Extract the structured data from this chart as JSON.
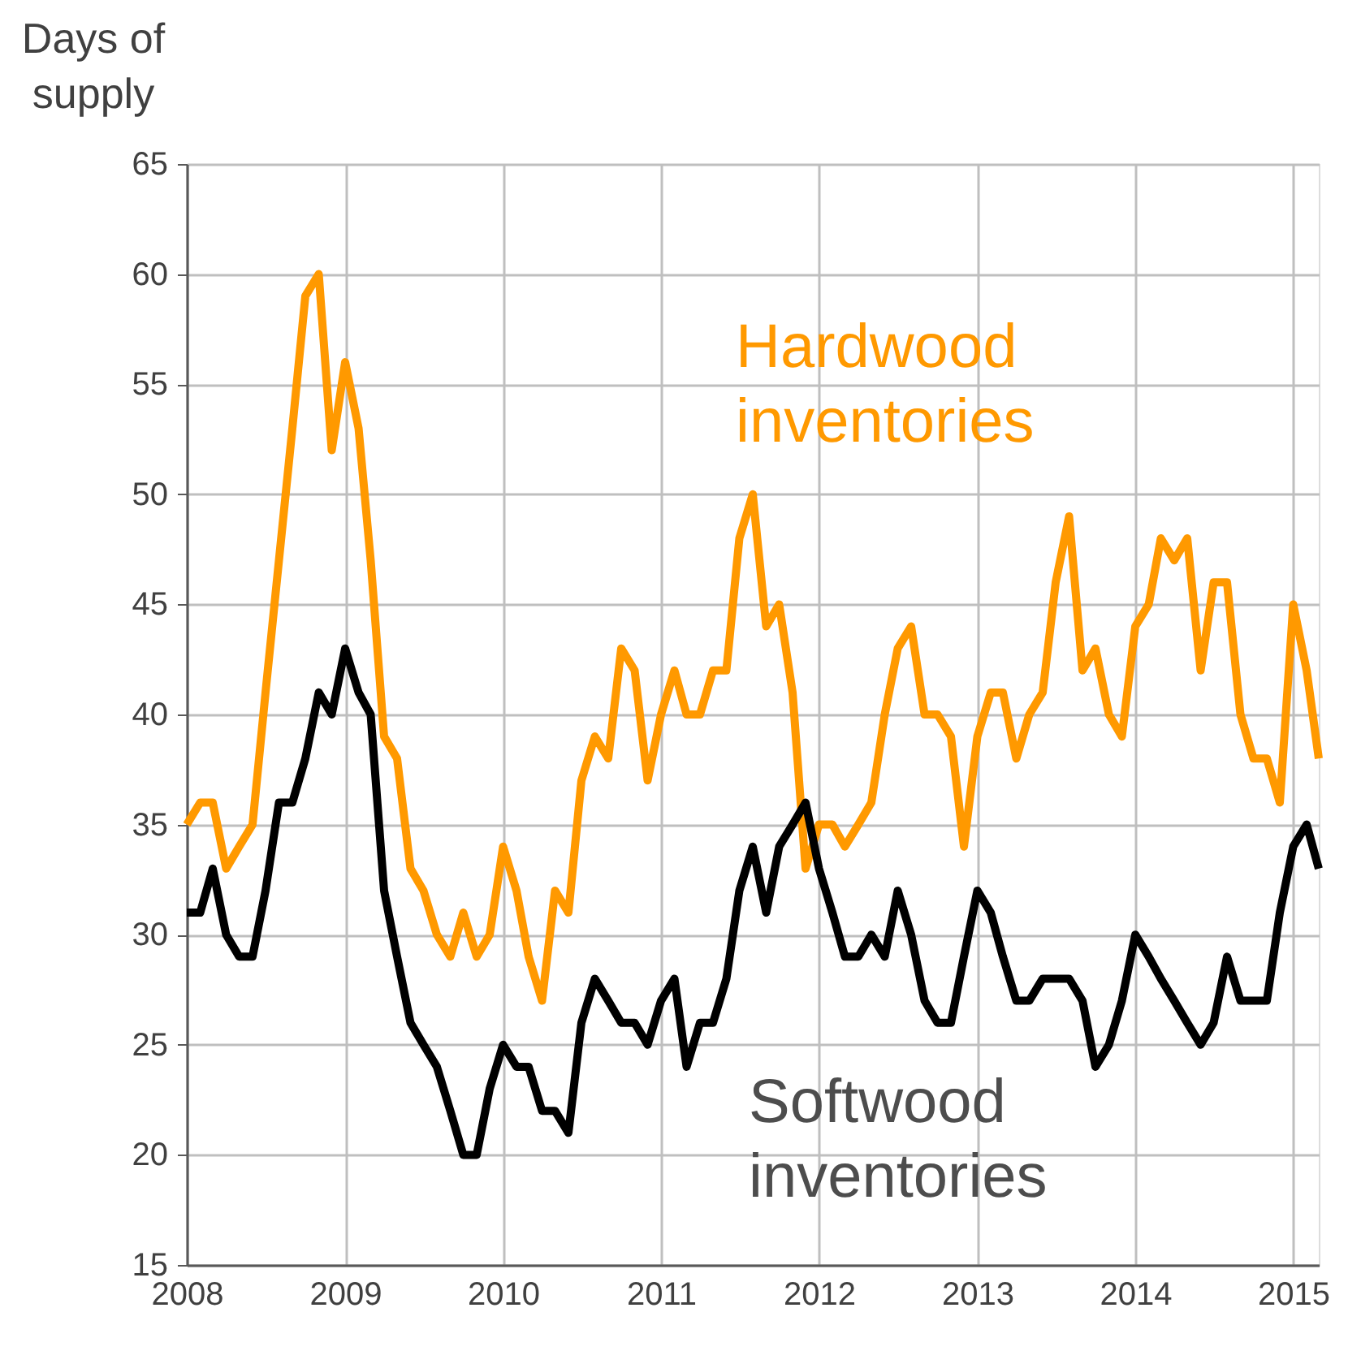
{
  "chart_data": {
    "type": "line",
    "ylabel": "Days of\nsupply",
    "x": [
      "2008-01",
      "2008-02",
      "2008-03",
      "2008-04",
      "2008-05",
      "2008-06",
      "2008-07",
      "2008-08",
      "2008-09",
      "2008-10",
      "2008-11",
      "2008-12",
      "2009-01",
      "2009-02",
      "2009-03",
      "2009-04",
      "2009-05",
      "2009-06",
      "2009-07",
      "2009-08",
      "2009-09",
      "2009-10",
      "2009-11",
      "2009-12",
      "2010-01",
      "2010-02",
      "2010-03",
      "2010-04",
      "2010-05",
      "2010-06",
      "2010-07",
      "2010-08",
      "2010-09",
      "2010-10",
      "2010-11",
      "2010-12",
      "2011-01",
      "2011-02",
      "2011-03",
      "2011-04",
      "2011-05",
      "2011-06",
      "2011-07",
      "2011-08",
      "2011-09",
      "2011-10",
      "2011-11",
      "2011-12",
      "2012-01",
      "2012-02",
      "2012-03",
      "2012-04",
      "2012-05",
      "2012-06",
      "2012-07",
      "2012-08",
      "2012-09",
      "2012-10",
      "2012-11",
      "2012-12",
      "2013-01",
      "2013-02",
      "2013-03",
      "2013-04",
      "2013-05",
      "2013-06",
      "2013-07",
      "2013-08",
      "2013-09",
      "2013-10",
      "2013-11",
      "2013-12",
      "2014-01",
      "2014-02",
      "2014-03",
      "2014-04",
      "2014-05",
      "2014-06",
      "2014-07",
      "2014-08",
      "2014-09",
      "2014-10",
      "2014-11",
      "2014-12",
      "2015-01",
      "2015-02",
      "2015-03"
    ],
    "series": [
      {
        "name": "Hardwood\ninventories",
        "color": "#ff9900",
        "values": [
          35,
          36,
          36,
          33,
          34,
          35,
          41,
          47,
          53,
          59,
          60,
          52,
          56,
          53,
          47,
          39,
          38,
          33,
          32,
          30,
          29,
          31,
          29,
          30,
          34,
          32,
          29,
          27,
          32,
          31,
          37,
          39,
          38,
          43,
          42,
          37,
          40,
          42,
          40,
          40,
          42,
          42,
          48,
          50,
          44,
          45,
          41,
          33,
          35,
          35,
          34,
          35,
          36,
          40,
          43,
          44,
          40,
          40,
          39,
          34,
          39,
          41,
          41,
          38,
          40,
          41,
          46,
          49,
          42,
          43,
          40,
          39,
          44,
          45,
          48,
          47,
          48,
          42,
          46,
          46,
          40,
          38,
          38,
          36,
          45,
          42,
          38
        ]
      },
      {
        "name": "Softwood\ninventories",
        "color": "#000000",
        "values": [
          31,
          31,
          33,
          30,
          29,
          29,
          32,
          36,
          36,
          38,
          41,
          40,
          43,
          41,
          40,
          32,
          29,
          26,
          25,
          24,
          22,
          20,
          20,
          23,
          25,
          24,
          24,
          22,
          22,
          21,
          26,
          28,
          27,
          26,
          26,
          25,
          27,
          28,
          24,
          26,
          26,
          28,
          32,
          34,
          31,
          34,
          35,
          36,
          33,
          31,
          29,
          29,
          30,
          29,
          32,
          30,
          27,
          26,
          26,
          29,
          32,
          31,
          29,
          27,
          27,
          28,
          28,
          28,
          27,
          24,
          25,
          27,
          30,
          29,
          28,
          27,
          26,
          25,
          26,
          29,
          27,
          27,
          27,
          31,
          34,
          35,
          33
        ]
      }
    ],
    "xlim": [
      "2008-01-01",
      "2015-03-01"
    ],
    "xticks": [
      {
        "value": "2008-01-01",
        "label": "2008"
      },
      {
        "value": "2009-01-01",
        "label": "2009"
      },
      {
        "value": "2010-01-01",
        "label": "2010"
      },
      {
        "value": "2011-01-01",
        "label": "2011"
      },
      {
        "value": "2012-01-01",
        "label": "2012"
      },
      {
        "value": "2013-01-01",
        "label": "2013"
      },
      {
        "value": "2014-01-01",
        "label": "2014"
      },
      {
        "value": "2015-01-01",
        "label": "2015"
      }
    ],
    "ylim": [
      15,
      65
    ],
    "yticks": [
      15,
      20,
      25,
      30,
      35,
      40,
      45,
      50,
      55,
      60,
      65
    ],
    "grid": true,
    "legend": false,
    "line_style": "solid",
    "marker": "none"
  }
}
